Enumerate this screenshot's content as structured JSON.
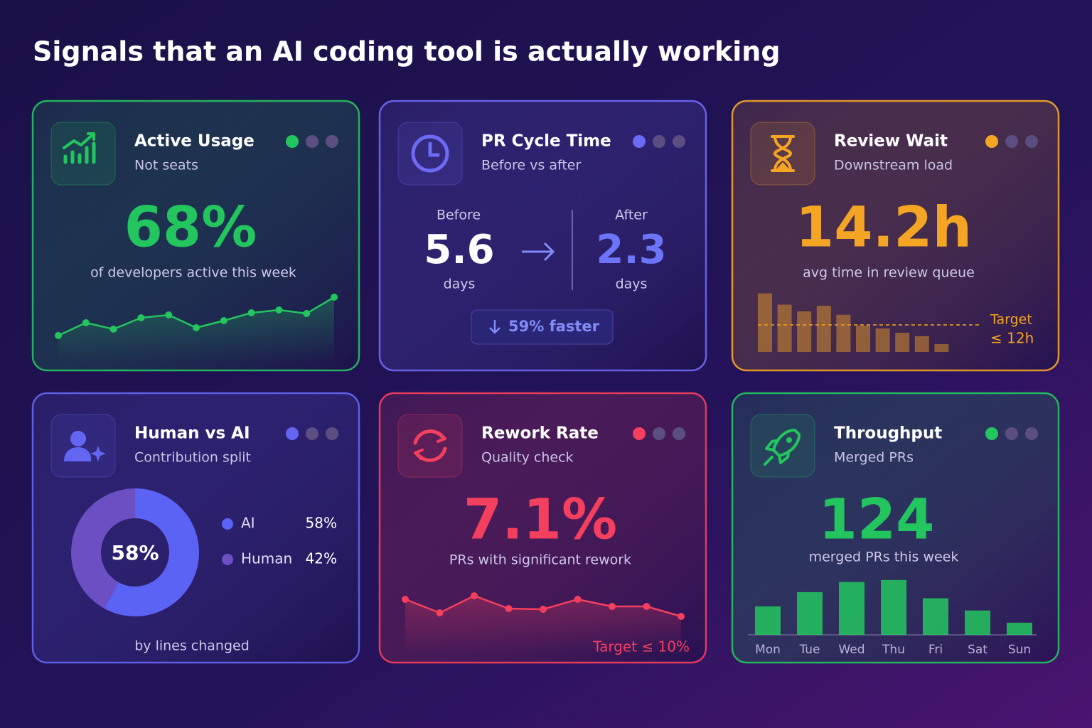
{
  "title": "Signals that an AI coding tool is actually working",
  "cards": [
    {
      "title": "Active Usage",
      "subtitle": "Not seats",
      "color": "#22c55e",
      "value": "68%",
      "caption": "of developers active this week",
      "chart": {
        "type": "line",
        "values": [
          18,
          36,
          27,
          43,
          47,
          29,
          39,
          50,
          54,
          49,
          72
        ]
      }
    },
    {
      "title": "PR Cycle Time",
      "subtitle": "Before vs after",
      "color": "#6d6af5",
      "before_label": "Before",
      "before_value": "5.6",
      "before_unit": "days",
      "after_label": "After",
      "after_value": "2.3",
      "after_unit": "days",
      "change": "59% faster"
    },
    {
      "title": "Review Wait",
      "subtitle": "Downstream load",
      "color": "#f5a524",
      "value": "14.2h",
      "caption": "avg time in review queue",
      "chart": {
        "type": "bar",
        "values": [
          26,
          21,
          18,
          20.5,
          16.5,
          11.7,
          10.4,
          8.5,
          7,
          3.5
        ],
        "target_title": "Target",
        "target": {
          "value": 12,
          "label": "≤ 12h"
        }
      }
    },
    {
      "title": "Human vs AI",
      "subtitle": "Contribution split",
      "color": "#6366f1",
      "caption": "by lines changed",
      "chart": {
        "type": "pie",
        "categories": [
          "AI",
          "Human"
        ],
        "values": [
          58,
          42
        ],
        "value_labels": [
          "58%",
          "42%"
        ],
        "colors": [
          "#5b63f5",
          "#6d4fc4"
        ]
      }
    },
    {
      "title": "Rework Rate",
      "subtitle": "Quality check",
      "color": "#f43f5e",
      "value": "7.1%",
      "caption": "PRs with significant rework",
      "chart": {
        "type": "line",
        "values": [
          57,
          38,
          62,
          44,
          43,
          57,
          47,
          47,
          33
        ],
        "note": "Target ≤ 10%"
      }
    },
    {
      "title": "Throughput",
      "subtitle": "Merged PRs",
      "color": "#22c55e",
      "value": "124",
      "caption": "merged PRs this week",
      "chart": {
        "type": "bar",
        "categories": [
          "Mon",
          "Tue",
          "Wed",
          "Thu",
          "Fri",
          "Sat",
          "Sun"
        ],
        "values": [
          14,
          21,
          26,
          27,
          18,
          12,
          6
        ]
      }
    }
  ]
}
